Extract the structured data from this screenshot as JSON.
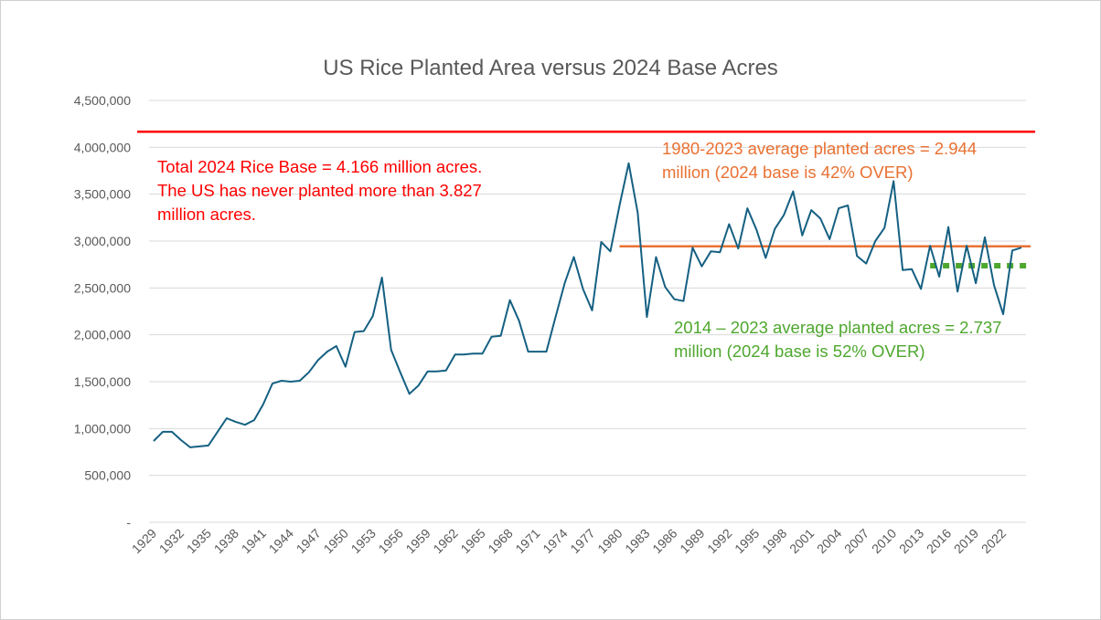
{
  "chart_data": {
    "type": "line",
    "title": "US Rice Planted Area versus 2024 Base Acres",
    "xlabel": "",
    "ylabel": "",
    "ylim": [
      0,
      4500000
    ],
    "yticks": [
      "-",
      "500,000",
      "1,000,000",
      "1,500,000",
      "2,000,000",
      "2,500,000",
      "3,000,000",
      "3,500,000",
      "4,000,000",
      "4,500,000"
    ],
    "xtick_labels": [
      "1929",
      "1932",
      "1935",
      "1938",
      "1941",
      "1944",
      "1947",
      "1950",
      "1953",
      "1956",
      "1959",
      "1962",
      "1965",
      "1968",
      "1971",
      "1974",
      "1977",
      "1980",
      "1983",
      "1986",
      "1989",
      "1992",
      "1995",
      "1998",
      "2001",
      "2004",
      "2007",
      "2010",
      "2013",
      "2016",
      "2019",
      "2022"
    ],
    "grid": true,
    "x_start": 1929,
    "x_end": 2024,
    "series": [
      {
        "color": "#156082",
        "values": [
          867000,
          965000,
          965000,
          877000,
          800000,
          809000,
          819000,
          965000,
          1110000,
          1070000,
          1040000,
          1090000,
          1260000,
          1480000,
          1510000,
          1500000,
          1510000,
          1600000,
          1730000,
          1820000,
          1880000,
          1660000,
          2030000,
          2040000,
          2200000,
          2610000,
          1840000,
          1600000,
          1370000,
          1460000,
          1610000,
          1610000,
          1620000,
          1790000,
          1790000,
          1800000,
          1800000,
          1980000,
          1990000,
          2370000,
          2150000,
          1820000,
          1820000,
          1820000,
          2190000,
          2550000,
          2830000,
          2490000,
          2260000,
          2990000,
          2890000,
          3380000,
          3830000,
          3300000,
          2190000,
          2830000,
          2510000,
          2380000,
          2360000,
          2930000,
          2730000,
          2890000,
          2880000,
          3180000,
          2920000,
          3350000,
          3120000,
          2820000,
          3130000,
          3280000,
          3530000,
          3060000,
          3330000,
          3240000,
          3020000,
          3350000,
          3380000,
          2840000,
          2760000,
          3000000,
          3140000,
          3640000,
          2690000,
          2700000,
          2490000,
          2950000,
          2620000,
          3150000,
          2460000,
          2950000,
          2550000,
          3040000,
          2530000,
          2220000,
          2900000,
          2930000
        ]
      }
    ],
    "reference_lines": [
      {
        "value": 4166000,
        "color": "#FF0000",
        "style": "solid",
        "from": 1929,
        "to": 2024
      },
      {
        "value": 2944000,
        "color": "#E97132",
        "style": "solid",
        "from": 1980,
        "to": 2024
      },
      {
        "value": 2737000,
        "color": "#4EA72E",
        "style": "dotted",
        "from": 2014,
        "to": 2024
      }
    ],
    "annotations": {
      "red": "Total 2024 Rice Base = 4.166 million acres.  The US has never planted more than 3.827 million acres.",
      "orange": "1980-2023 average planted acres = 2.944 million (2024 base is 42% OVER)",
      "green": "2014 – 2023 average planted acres = 2.737 million (2024 base is 52% OVER)"
    }
  }
}
